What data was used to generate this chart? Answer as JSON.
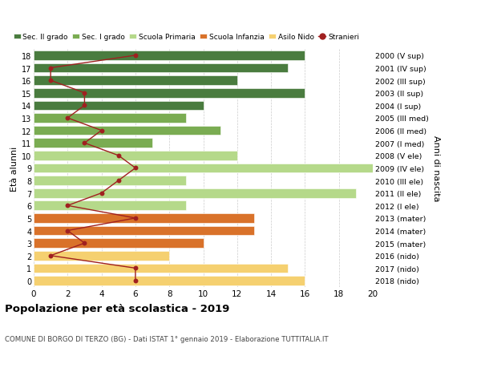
{
  "ages": [
    18,
    17,
    16,
    15,
    14,
    13,
    12,
    11,
    10,
    9,
    8,
    7,
    6,
    5,
    4,
    3,
    2,
    1,
    0
  ],
  "years": [
    "2000 (V sup)",
    "2001 (IV sup)",
    "2002 (III sup)",
    "2003 (II sup)",
    "2004 (I sup)",
    "2005 (III med)",
    "2006 (II med)",
    "2007 (I med)",
    "2008 (V ele)",
    "2009 (IV ele)",
    "2010 (III ele)",
    "2011 (II ele)",
    "2012 (I ele)",
    "2013 (mater)",
    "2014 (mater)",
    "2015 (mater)",
    "2016 (nido)",
    "2017 (nido)",
    "2018 (nido)"
  ],
  "bar_values": [
    16,
    15,
    12,
    16,
    10,
    9,
    11,
    7,
    12,
    20,
    9,
    19,
    9,
    13,
    13,
    10,
    8,
    15,
    16
  ],
  "bar_colors": [
    "#4a7c3f",
    "#4a7c3f",
    "#4a7c3f",
    "#4a7c3f",
    "#4a7c3f",
    "#7aac52",
    "#7aac52",
    "#7aac52",
    "#b5d98a",
    "#b5d98a",
    "#b5d98a",
    "#b5d98a",
    "#b5d98a",
    "#d9722a",
    "#d9722a",
    "#d9722a",
    "#f5d070",
    "#f5d070",
    "#f5d070"
  ],
  "stranieri": [
    6,
    1,
    1,
    3,
    3,
    2,
    4,
    3,
    5,
    6,
    5,
    4,
    2,
    6,
    2,
    3,
    1,
    6,
    6
  ],
  "xlim": [
    0,
    20
  ],
  "ylim": [
    -0.5,
    18.5
  ],
  "ylabel_left": "Età alunni",
  "ylabel_right": "Anni di nascita",
  "title": "Popolazione per età scolastica - 2019",
  "subtitle": "COMUNE DI BORGO DI TERZO (BG) - Dati ISTAT 1° gennaio 2019 - Elaborazione TUTTITALIA.IT",
  "legend_labels": [
    "Sec. II grado",
    "Sec. I grado",
    "Scuola Primaria",
    "Scuola Infanzia",
    "Asilo Nido",
    "Stranieri"
  ],
  "legend_colors": [
    "#4a7c3f",
    "#7aac52",
    "#b5d98a",
    "#d9722a",
    "#f5d070",
    "#c0392b"
  ],
  "stranieri_color": "#a02020",
  "grid_color": "#cccccc",
  "bg_color": "#ffffff"
}
